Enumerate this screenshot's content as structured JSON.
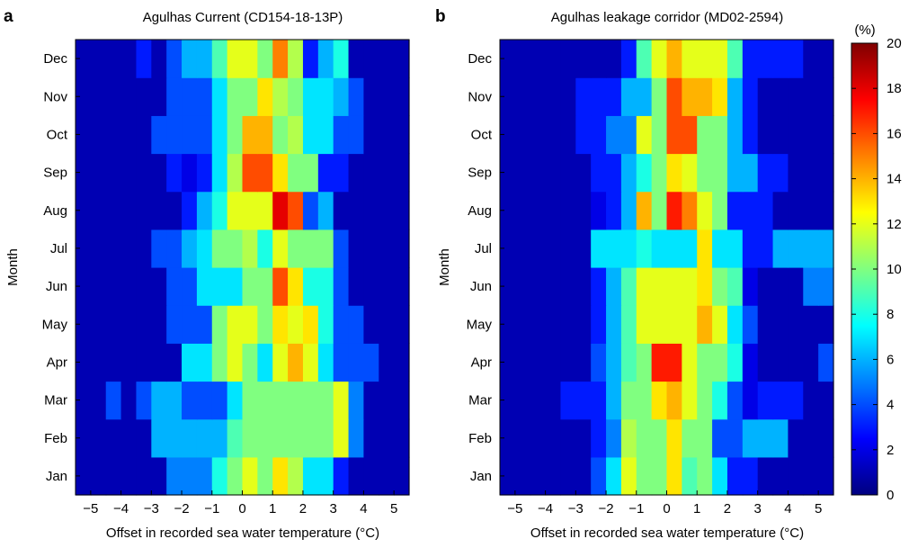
{
  "figure": {
    "panel_letters": [
      "a",
      "b"
    ],
    "colorbar_unit": "(%)"
  },
  "chart_data": [
    {
      "type": "heatmap",
      "panel": "a",
      "title": "Agulhas Current (CD154-18-13P)",
      "xlabel": "Offset in recorded sea water temperature (°C)",
      "ylabel": "Month",
      "xlim": [
        -5.5,
        5.5
      ],
      "x_bin_width": 0.5,
      "x_ticks": [
        -5,
        -4,
        -3,
        -2,
        -1,
        0,
        1,
        2,
        3,
        4,
        5
      ],
      "x_tick_labels": [
        "−5",
        "−4",
        "−3",
        "−2",
        "−1",
        "0",
        "1",
        "2",
        "3",
        "4",
        "5"
      ],
      "months": [
        "Jan",
        "Feb",
        "Mar",
        "Apr",
        "May",
        "Jun",
        "Jul",
        "Aug",
        "Sep",
        "Oct",
        "Nov",
        "Dec"
      ],
      "x_bin_centers": [
        -5.25,
        -4.75,
        -4.25,
        -3.75,
        -3.25,
        -2.75,
        -2.25,
        -1.75,
        -1.25,
        -0.75,
        -0.25,
        0.25,
        0.75,
        1.25,
        1.75,
        2.25,
        2.75,
        3.25,
        3.75,
        4.25,
        4.75,
        5.25
      ],
      "values": [
        [
          1,
          1,
          1,
          1,
          1,
          1,
          5,
          5,
          5,
          8,
          10,
          12,
          10,
          13,
          11,
          7,
          7,
          3,
          1,
          1,
          1,
          1
        ],
        [
          1,
          1,
          1,
          1,
          1,
          6,
          6,
          6,
          6,
          6,
          9,
          10,
          10,
          10,
          10,
          10,
          10,
          12,
          5,
          1,
          1,
          1
        ],
        [
          1,
          1,
          4,
          1,
          4,
          6,
          6,
          4,
          4,
          4,
          7,
          10,
          10,
          10,
          10,
          10,
          10,
          12,
          5,
          1,
          1,
          1
        ],
        [
          1,
          1,
          1,
          1,
          1,
          1,
          1,
          7,
          7,
          10,
          12,
          10,
          7,
          12,
          14,
          12,
          7,
          4,
          4,
          4,
          1,
          1
        ],
        [
          1,
          1,
          1,
          1,
          1,
          1,
          4,
          4,
          4,
          10,
          12,
          12,
          10,
          13,
          12,
          13,
          8,
          4,
          4,
          1,
          1,
          1
        ],
        [
          1,
          1,
          1,
          1,
          1,
          1,
          4,
          4,
          7,
          7,
          7,
          10,
          10,
          16,
          13,
          8,
          8,
          4,
          1,
          1,
          1,
          1
        ],
        [
          1,
          1,
          1,
          1,
          1,
          4,
          4,
          6,
          7,
          10,
          10,
          11,
          8,
          12,
          10,
          10,
          10,
          4,
          1,
          1,
          1,
          1
        ],
        [
          1,
          1,
          1,
          1,
          1,
          1,
          1,
          3,
          6,
          8,
          12,
          12,
          12,
          18,
          16,
          4,
          6,
          1,
          1,
          1,
          1,
          1
        ],
        [
          1,
          1,
          1,
          1,
          1,
          1,
          3,
          2,
          3,
          7,
          11,
          16,
          16,
          13,
          10,
          10,
          3,
          3,
          1,
          1,
          1,
          1
        ],
        [
          1,
          1,
          1,
          1,
          1,
          4,
          4,
          4,
          4,
          7,
          10,
          14,
          14,
          10,
          11,
          7,
          7,
          4,
          4,
          1,
          1,
          1
        ],
        [
          1,
          1,
          1,
          1,
          1,
          1,
          4,
          4,
          4,
          7,
          10,
          10,
          13,
          11,
          10,
          7,
          7,
          6,
          4,
          1,
          1,
          1
        ],
        [
          1,
          1,
          1,
          1,
          3,
          1,
          4,
          6,
          6,
          9,
          12,
          12,
          10,
          15,
          11,
          3,
          6,
          8,
          1,
          1,
          1,
          1
        ]
      ]
    },
    {
      "type": "heatmap",
      "panel": "b",
      "title": "Agulhas leakage corridor (MD02-2594)",
      "xlabel": "Offset in recorded sea water temperature (°C)",
      "ylabel": "Month",
      "xlim": [
        -5.5,
        5.5
      ],
      "x_bin_width": 0.5,
      "x_ticks": [
        -5,
        -4,
        -3,
        -2,
        -1,
        0,
        1,
        2,
        3,
        4,
        5
      ],
      "x_tick_labels": [
        "−5",
        "−4",
        "−3",
        "−2",
        "−1",
        "0",
        "1",
        "2",
        "3",
        "4",
        "5"
      ],
      "months": [
        "Jan",
        "Feb",
        "Mar",
        "Apr",
        "May",
        "Jun",
        "Jul",
        "Aug",
        "Sep",
        "Oct",
        "Nov",
        "Dec"
      ],
      "x_bin_centers": [
        -5.25,
        -4.75,
        -4.25,
        -3.75,
        -3.25,
        -2.75,
        -2.25,
        -1.75,
        -1.25,
        -0.75,
        -0.25,
        0.25,
        0.75,
        1.25,
        1.75,
        2.25,
        2.75,
        3.25,
        3.75,
        4.25,
        4.75,
        5.25
      ],
      "values": [
        [
          1,
          1,
          1,
          1,
          1,
          1,
          4,
          7,
          12,
          10,
          10,
          13,
          9,
          10,
          7,
          3,
          3,
          1,
          1,
          1,
          1,
          1
        ],
        [
          1,
          1,
          1,
          1,
          1,
          1,
          3,
          5,
          11,
          10,
          10,
          13,
          10,
          10,
          4,
          4,
          6,
          6,
          6,
          1,
          1,
          1
        ],
        [
          1,
          1,
          1,
          1,
          3,
          3,
          3,
          6,
          10,
          10,
          13,
          14,
          12,
          10,
          8,
          4,
          2,
          3,
          3,
          3,
          1,
          1
        ],
        [
          1,
          1,
          1,
          1,
          1,
          1,
          4,
          6,
          9,
          10,
          17,
          17,
          12,
          10,
          10,
          8,
          2,
          1,
          1,
          1,
          1,
          4
        ],
        [
          1,
          1,
          1,
          1,
          1,
          1,
          3,
          6,
          9,
          12,
          12,
          12,
          12,
          14,
          12,
          7,
          4,
          1,
          1,
          1,
          1,
          1
        ],
        [
          1,
          1,
          1,
          1,
          1,
          1,
          3,
          6,
          9,
          12,
          12,
          12,
          12,
          13,
          10,
          9,
          2,
          1,
          1,
          1,
          5,
          5
        ],
        [
          1,
          1,
          1,
          1,
          1,
          1,
          7,
          7,
          7,
          8,
          7,
          7,
          7,
          13,
          7,
          7,
          3,
          3,
          6,
          6,
          6,
          6
        ],
        [
          1,
          1,
          1,
          1,
          1,
          1,
          2,
          3,
          6,
          14,
          10,
          17,
          15,
          12,
          10,
          3,
          3,
          3,
          1,
          1,
          1,
          1
        ],
        [
          1,
          1,
          1,
          1,
          1,
          1,
          3,
          3,
          6,
          8,
          10,
          13,
          12,
          10,
          10,
          6,
          6,
          3,
          3,
          1,
          1,
          1
        ],
        [
          1,
          1,
          1,
          1,
          1,
          3,
          3,
          5,
          5,
          12,
          10,
          16,
          16,
          10,
          10,
          6,
          3,
          1,
          1,
          1,
          1,
          1
        ],
        [
          1,
          1,
          1,
          1,
          1,
          3,
          3,
          3,
          6,
          6,
          10,
          16,
          14,
          14,
          13,
          6,
          3,
          1,
          1,
          1,
          1,
          1
        ],
        [
          1,
          1,
          1,
          1,
          1,
          1,
          1,
          1,
          3,
          9,
          12,
          14,
          12,
          12,
          12,
          9,
          3,
          3,
          3,
          3,
          1,
          1
        ]
      ]
    }
  ],
  "colorbar": {
    "min": 0,
    "max": 20,
    "ticks": [
      0,
      2,
      4,
      6,
      8,
      10,
      12,
      14,
      16,
      18,
      20
    ],
    "colormap": "jet"
  }
}
